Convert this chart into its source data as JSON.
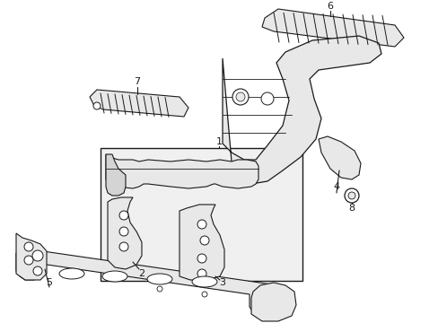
{
  "background_color": "#ffffff",
  "line_color": "#1a1a1a",
  "fill_light": "#e8e8e8",
  "fill_mid": "#d4d4d4",
  "fill_dark": "#c0c0c0",
  "fig_width": 4.89,
  "fig_height": 3.6,
  "dpi": 100
}
